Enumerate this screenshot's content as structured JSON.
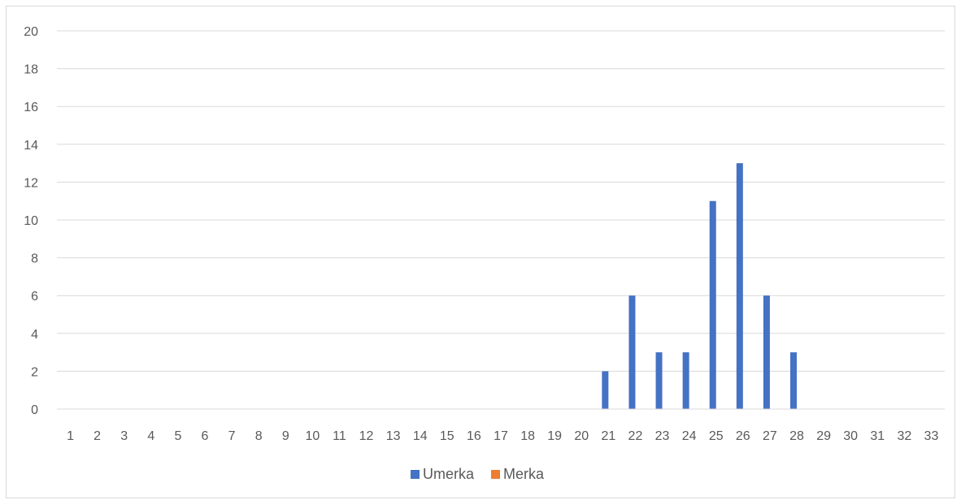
{
  "chart_data": {
    "type": "bar",
    "title": "",
    "xlabel": "",
    "ylabel": "",
    "ylim": [
      0,
      20
    ],
    "yticks": [
      0,
      2,
      4,
      6,
      8,
      10,
      12,
      14,
      16,
      18,
      20
    ],
    "grid": true,
    "legend_position": "bottom",
    "categories": [
      "1",
      "2",
      "3",
      "4",
      "5",
      "6",
      "7",
      "8",
      "9",
      "10",
      "11",
      "12",
      "13",
      "14",
      "15",
      "16",
      "17",
      "18",
      "19",
      "20",
      "21",
      "22",
      "23",
      "24",
      "25",
      "26",
      "27",
      "28",
      "29",
      "30",
      "31",
      "32",
      "33"
    ],
    "series": [
      {
        "name": "Umerka",
        "color": "#4472c4",
        "values": [
          0,
          0,
          0,
          0,
          0,
          0,
          0,
          0,
          0,
          0,
          0,
          0,
          0,
          0,
          0,
          0,
          0,
          0,
          0,
          0,
          2,
          6,
          3,
          3,
          11,
          13,
          6,
          3,
          0,
          0,
          0,
          0,
          0
        ]
      },
      {
        "name": "Merka",
        "color": "#ed7d31",
        "values": [
          0,
          0,
          0,
          0,
          0,
          0,
          0,
          0,
          0,
          0,
          0,
          0,
          0,
          0,
          0,
          0,
          0,
          0,
          0,
          0,
          0,
          0,
          0,
          0,
          0,
          0,
          0,
          0,
          0,
          0,
          0,
          0,
          0
        ]
      }
    ]
  }
}
